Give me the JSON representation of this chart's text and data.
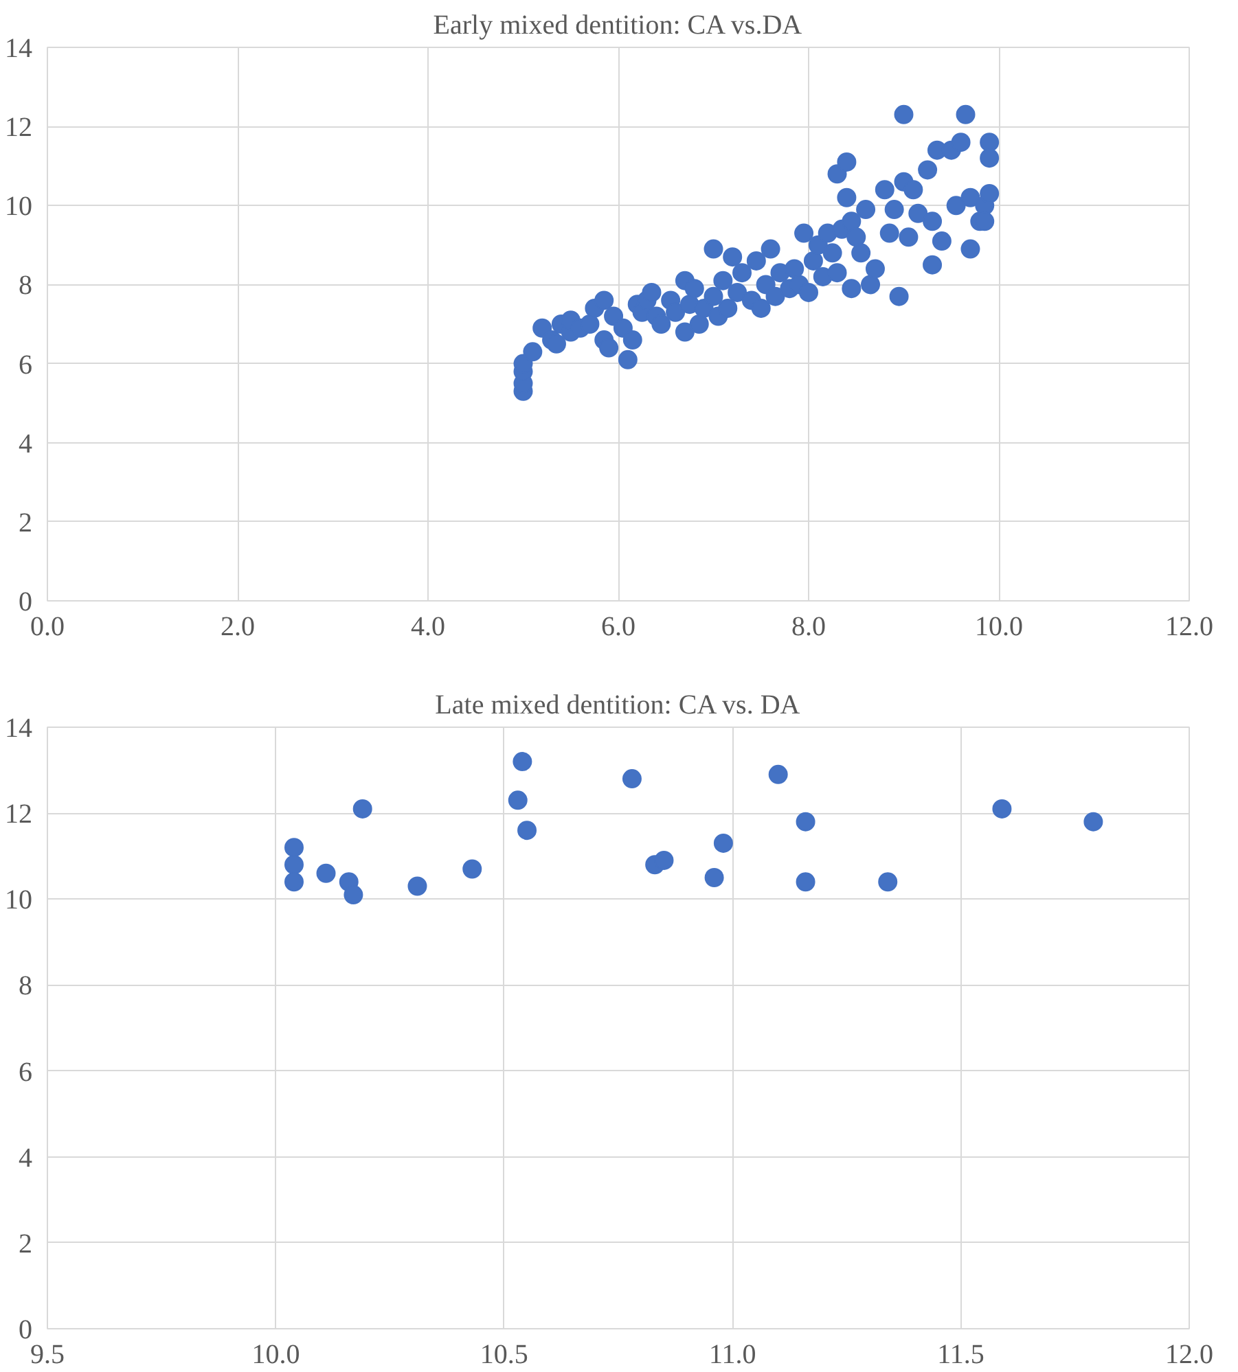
{
  "chart_data": [
    {
      "type": "scatter",
      "title": "Early mixed dentition: CA vs.DA",
      "color": "#4472c4",
      "marker": "circle",
      "grid": true,
      "xlim": [
        0,
        12
      ],
      "ylim": [
        0,
        14
      ],
      "xticks": [
        {
          "value": 0,
          "label": "0.0"
        },
        {
          "value": 2,
          "label": "2.0"
        },
        {
          "value": 4,
          "label": "4.0"
        },
        {
          "value": 6,
          "label": "6.0"
        },
        {
          "value": 8,
          "label": "8.0"
        },
        {
          "value": 10,
          "label": "10.0"
        },
        {
          "value": 12,
          "label": "12.0"
        }
      ],
      "yticks": [
        0,
        2,
        4,
        6,
        8,
        10,
        12,
        14
      ],
      "x": [
        5.0,
        5.0,
        5.0,
        5.0,
        5.1,
        5.2,
        5.3,
        5.35,
        5.4,
        5.5,
        5.5,
        5.6,
        5.7,
        5.75,
        5.85,
        5.85,
        5.9,
        5.95,
        6.05,
        6.1,
        6.15,
        6.2,
        6.25,
        6.3,
        6.35,
        6.4,
        6.45,
        6.55,
        6.6,
        6.7,
        6.7,
        6.75,
        6.8,
        6.85,
        6.9,
        7.0,
        7.0,
        7.05,
        7.1,
        7.15,
        7.2,
        7.25,
        7.3,
        7.4,
        7.45,
        7.5,
        7.55,
        7.6,
        7.65,
        7.7,
        7.8,
        7.85,
        7.9,
        7.95,
        8.0,
        8.05,
        8.1,
        8.15,
        8.2,
        8.25,
        8.3,
        8.3,
        8.35,
        8.4,
        8.4,
        8.45,
        8.45,
        8.5,
        8.55,
        8.6,
        8.65,
        8.7,
        8.8,
        8.85,
        8.9,
        8.95,
        9.0,
        9.0,
        9.05,
        9.1,
        9.15,
        9.25,
        9.3,
        9.3,
        9.35,
        9.4,
        9.5,
        9.55,
        9.6,
        9.65,
        9.7,
        9.7,
        9.8,
        9.85,
        9.9,
        9.9,
        9.9,
        9.85
      ],
      "values": [
        5.3,
        5.5,
        5.8,
        6.0,
        6.3,
        6.9,
        6.6,
        6.5,
        7.0,
        6.8,
        7.1,
        6.9,
        7.0,
        7.4,
        7.6,
        6.6,
        6.4,
        7.2,
        6.9,
        6.1,
        6.6,
        7.5,
        7.3,
        7.6,
        7.8,
        7.2,
        7.0,
        7.6,
        7.3,
        6.8,
        8.1,
        7.5,
        7.9,
        7.0,
        7.4,
        8.9,
        7.7,
        7.2,
        8.1,
        7.4,
        8.7,
        7.8,
        8.3,
        7.6,
        8.6,
        7.4,
        8.0,
        8.9,
        7.7,
        8.3,
        7.9,
        8.4,
        8.0,
        9.3,
        7.8,
        8.6,
        9.0,
        8.2,
        9.3,
        8.8,
        10.8,
        8.3,
        9.4,
        11.1,
        10.2,
        7.9,
        9.6,
        9.2,
        8.8,
        9.9,
        8.0,
        8.4,
        10.4,
        9.3,
        9.9,
        7.7,
        12.3,
        10.6,
        9.2,
        10.4,
        9.8,
        10.9,
        8.5,
        9.6,
        11.4,
        9.1,
        11.4,
        10.0,
        11.6,
        12.3,
        10.2,
        8.9,
        9.6,
        10.0,
        11.6,
        11.2,
        10.3,
        9.6
      ]
    },
    {
      "type": "scatter",
      "title": "Late mixed dentition: CA vs. DA",
      "color": "#4472c4",
      "marker": "circle",
      "grid": true,
      "xlim": [
        9.5,
        12
      ],
      "ylim": [
        0,
        14
      ],
      "xticks": [
        {
          "value": 9.5,
          "label": "9.5"
        },
        {
          "value": 10,
          "label": "10.0"
        },
        {
          "value": 10.5,
          "label": "10.5"
        },
        {
          "value": 11,
          "label": "11.0"
        },
        {
          "value": 11.5,
          "label": "11.5"
        },
        {
          "value": 12,
          "label": "12.0"
        }
      ],
      "yticks": [
        0,
        2,
        4,
        6,
        8,
        10,
        12,
        14
      ],
      "x": [
        10.04,
        10.04,
        10.04,
        10.11,
        10.16,
        10.17,
        10.19,
        10.31,
        10.43,
        10.53,
        10.54,
        10.55,
        10.78,
        10.83,
        10.85,
        10.96,
        10.98,
        11.1,
        11.16,
        11.16,
        11.34,
        11.59,
        11.79
      ],
      "values": [
        11.2,
        10.8,
        10.4,
        10.6,
        10.4,
        10.1,
        12.1,
        10.3,
        10.7,
        12.3,
        13.2,
        11.6,
        12.8,
        10.8,
        10.9,
        10.5,
        11.3,
        12.9,
        11.8,
        10.4,
        10.4,
        12.1,
        11.8
      ]
    }
  ]
}
